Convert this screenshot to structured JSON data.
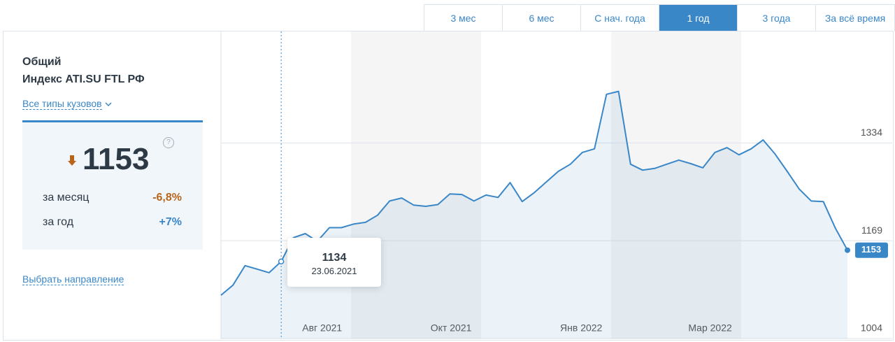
{
  "tabs": [
    "3 мес",
    "6 мес",
    "С нач. года",
    "1 год",
    "3 года",
    "За всё время"
  ],
  "active_tab": 3,
  "panel": {
    "title_line1": "Общий",
    "title_line2": "Индекс ATI.SU FTL РФ",
    "filter_link": "Все типы кузовов",
    "index_value": 1153,
    "help": "?",
    "rows": [
      {
        "label": "за месяц",
        "change": "-6,8%"
      },
      {
        "label": "за год",
        "change": "+7%"
      }
    ],
    "direction_link": "Выбрать направление"
  },
  "chart_data": {
    "type": "line",
    "color": "#3a87c8",
    "values": [
      1077,
      1094,
      1127,
      1121,
      1115,
      1134,
      1174,
      1181,
      1168,
      1191,
      1191,
      1197,
      1200,
      1212,
      1236,
      1241,
      1229,
      1227,
      1230,
      1248,
      1247,
      1236,
      1246,
      1242,
      1267,
      1235,
      1250,
      1268,
      1286,
      1298,
      1318,
      1324,
      1416,
      1421,
      1298,
      1288,
      1291,
      1298,
      1305,
      1299,
      1292,
      1318,
      1326,
      1314,
      1324,
      1339,
      1315,
      1286,
      1256,
      1236,
      1235,
      1190,
      1153
    ],
    "xlim": [
      0,
      52
    ],
    "xticks": [
      {
        "value": 8.4,
        "label": "Авг 2021"
      },
      {
        "value": 19.1,
        "label": "Окт 2021"
      },
      {
        "value": 29.9,
        "label": "Янв 2022"
      },
      {
        "value": 40.6,
        "label": "Мар 2022"
      }
    ],
    "ylim": [
      1004,
      1522
    ],
    "yticks": [
      1004,
      1169,
      1334
    ],
    "grid": true,
    "tooltip": {
      "index": 5,
      "date": "23.06.2021"
    }
  }
}
